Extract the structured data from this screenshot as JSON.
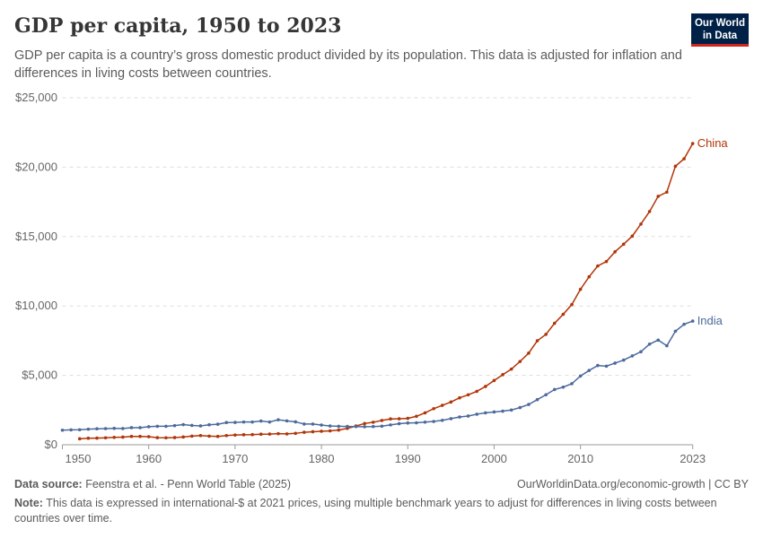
{
  "header": {
    "title": "GDP per capita, 1950 to 2023",
    "subtitle": "GDP per capita is a country’s gross domestic product divided by its population. This data is adjusted for inflation and differences in living costs between countries.",
    "logo": "Our World in Data"
  },
  "footer": {
    "source_label": "Data source:",
    "source": "Feenstra et al. - Penn World Table (2025)",
    "url": "OurWorldinData.org/economic-growth | CC BY",
    "note_label": "Note:",
    "note": "This data is expressed in international-$ at 2021 prices, using multiple benchmark years to adjust for differences in living costs between countries over time."
  },
  "chart_data": {
    "type": "line",
    "title": "GDP per capita, 1950 to 2023",
    "xlim": [
      1950,
      2023
    ],
    "ylim": [
      0,
      25000
    ],
    "grid": "horizontal dashed",
    "x_ticks": [
      "1950",
      "1960",
      "1970",
      "1980",
      "1990",
      "2000",
      "2010",
      "2023"
    ],
    "y_ticks": [
      "$0",
      "$5,000",
      "$10,000",
      "$15,000",
      "$20,000",
      "$25,000"
    ],
    "series": [
      {
        "name": "China",
        "color": "#b13507",
        "start_year": 1952,
        "values": [
          430,
          470,
          480,
          500,
          530,
          550,
          600,
          600,
          580,
          510,
          500,
          520,
          560,
          620,
          660,
          620,
          600,
          660,
          700,
          720,
          730,
          760,
          770,
          800,
          780,
          820,
          900,
          940,
          970,
          1000,
          1060,
          1180,
          1350,
          1530,
          1620,
          1750,
          1860,
          1870,
          1900,
          2050,
          2300,
          2600,
          2840,
          3080,
          3380,
          3600,
          3850,
          4200,
          4630,
          5050,
          5450,
          6000,
          6600,
          7490,
          7950,
          8750,
          9400,
          10100,
          11200,
          12100,
          12880,
          13200,
          13900,
          14450,
          15030,
          15900,
          16800,
          17900,
          18200,
          20070,
          20600,
          21700
        ]
      },
      {
        "name": "India",
        "color": "#4c6a9c",
        "start_year": 1950,
        "values": [
          1050,
          1070,
          1080,
          1120,
          1150,
          1160,
          1180,
          1170,
          1230,
          1230,
          1300,
          1330,
          1330,
          1380,
          1450,
          1390,
          1360,
          1440,
          1480,
          1600,
          1610,
          1640,
          1640,
          1710,
          1640,
          1800,
          1720,
          1650,
          1490,
          1490,
          1420,
          1350,
          1330,
          1320,
          1310,
          1300,
          1310,
          1340,
          1430,
          1520,
          1570,
          1580,
          1630,
          1680,
          1760,
          1880,
          2000,
          2070,
          2200,
          2300,
          2360,
          2420,
          2500,
          2680,
          2900,
          3250,
          3600,
          3980,
          4150,
          4400,
          4950,
          5350,
          5710,
          5660,
          5880,
          6100,
          6400,
          6700,
          7250,
          7540,
          7130,
          8180,
          8680,
          8910
        ]
      }
    ]
  }
}
